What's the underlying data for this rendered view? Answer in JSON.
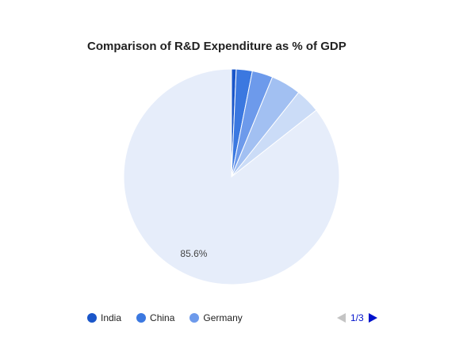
{
  "chart_data": {
    "type": "pie",
    "title": "Comparison of R&D Expenditure as % of GDP",
    "slices": [
      {
        "name": "India",
        "value": 0.7,
        "color": "#1a56c9"
      },
      {
        "name": "China",
        "value": 2.4,
        "color": "#3b78e0"
      },
      {
        "name": "Germany",
        "value": 3.1,
        "color": "#6d9aeb"
      },
      {
        "name": "",
        "value": 4.5,
        "color": "#a2c0f2"
      },
      {
        "name": "",
        "value": 3.7,
        "color": "#cbdcf7"
      },
      {
        "name": "",
        "value": 85.6,
        "color": "#e6edfa"
      }
    ],
    "visible_slice_labels": [
      {
        "slice_index": 5,
        "text": "85.6%"
      }
    ],
    "legend": {
      "placement": "bottom",
      "page": "1/3"
    }
  }
}
